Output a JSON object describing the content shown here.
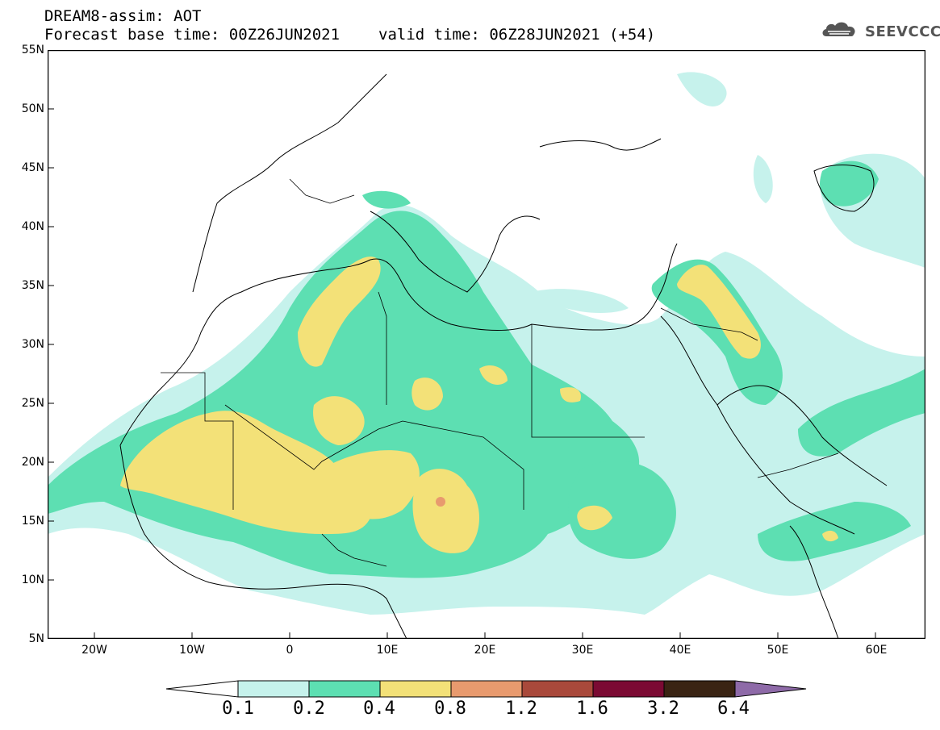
{
  "header": {
    "title_line1": "DREAM8-assim: AOT",
    "base_time": "Forecast base time: 00Z26JUN2021",
    "valid_time": "valid time: 06Z28JUN2021 (+54)"
  },
  "logo": {
    "text": "SEEVCCC",
    "icon": "cloud-logo-icon"
  },
  "map": {
    "variable": "AOT",
    "projection": "cylindrical equidistant",
    "extent": {
      "lon_min": -25,
      "lon_max": 65,
      "lat_min": 5,
      "lat_max": 55
    },
    "lat_ticks": [
      "55N",
      "50N",
      "45N",
      "40N",
      "35N",
      "30N",
      "25N",
      "20N",
      "15N",
      "10N",
      "5N"
    ],
    "lon_ticks": [
      "20W",
      "10W",
      "0",
      "10E",
      "20E",
      "30E",
      "40E",
      "50E",
      "60E"
    ],
    "background": "#ffffff",
    "borders_color": "#000000"
  },
  "colorbar": {
    "levels": [
      "0.1",
      "0.2",
      "0.4",
      "0.8",
      "1.2",
      "1.6",
      "3.2",
      "6.4"
    ],
    "colors": [
      "#c6f2ec",
      "#5ddfb2",
      "#f3e178",
      "#e89a6e",
      "#a9493b",
      "#7b0a33",
      "#3a2413",
      "#8e6aa8"
    ],
    "below_color": "#ffffff"
  }
}
